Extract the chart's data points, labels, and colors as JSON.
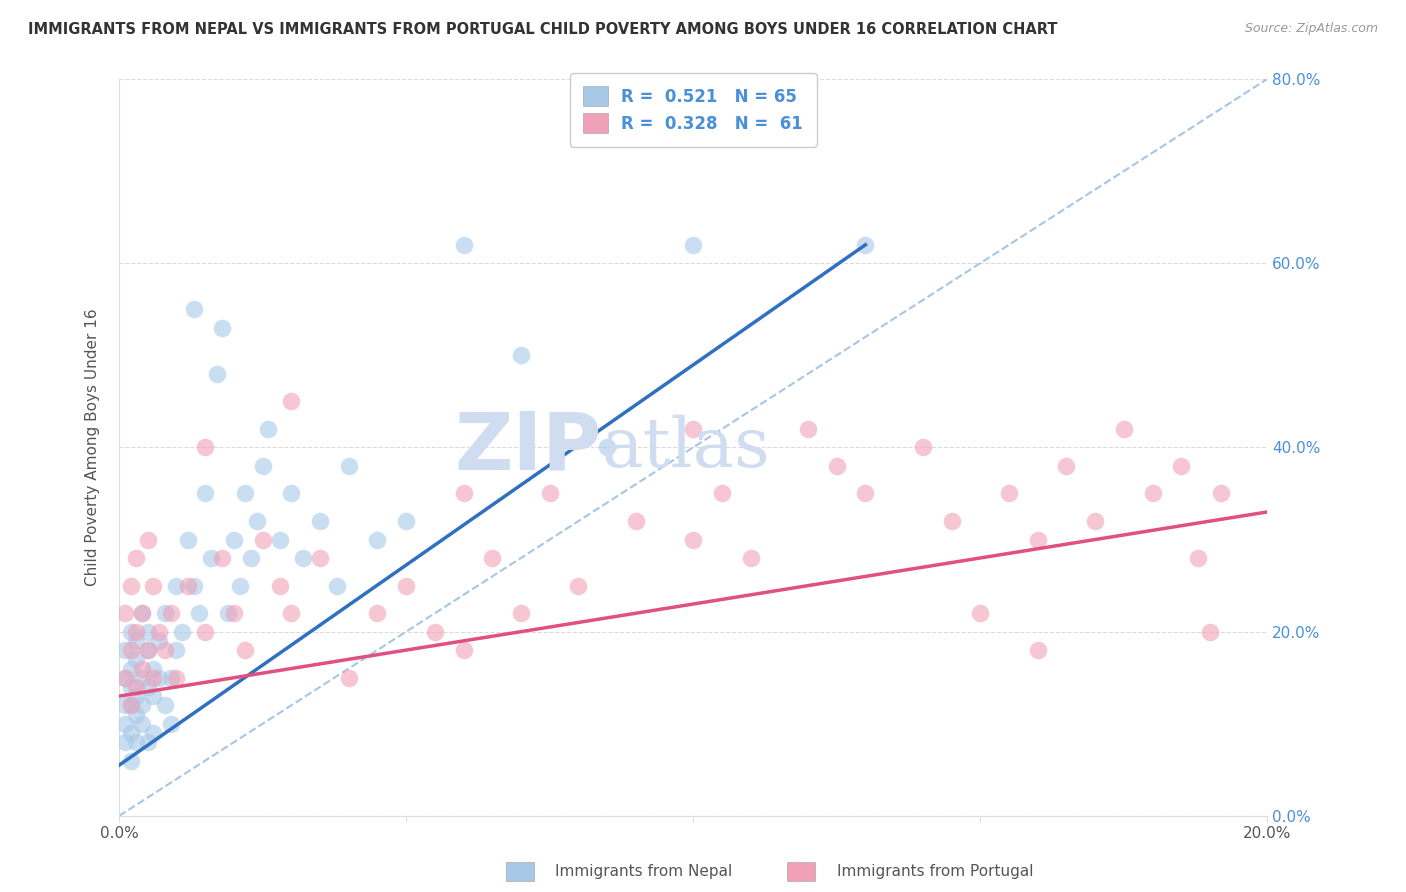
{
  "title": "IMMIGRANTS FROM NEPAL VS IMMIGRANTS FROM PORTUGAL CHILD POVERTY AMONG BOYS UNDER 16 CORRELATION CHART",
  "source": "Source: ZipAtlas.com",
  "ylabel": "Child Poverty Among Boys Under 16",
  "xlabel_nepal": "Immigrants from Nepal",
  "xlabel_portugal": "Immigrants from Portugal",
  "xlim": [
    0.0,
    0.2
  ],
  "ylim": [
    0.0,
    0.8
  ],
  "xticks": [
    0.0,
    0.05,
    0.1,
    0.15,
    0.2
  ],
  "yticks": [
    0.0,
    0.2,
    0.4,
    0.6,
    0.8
  ],
  "ytick_labels_right": [
    "0.0%",
    "20.0%",
    "40.0%",
    "60.0%",
    "80.0%"
  ],
  "xtick_labels": [
    "0.0%",
    "",
    "",
    "",
    "20.0%"
  ],
  "R_nepal": 0.521,
  "N_nepal": 65,
  "R_portugal": 0.328,
  "N_portugal": 61,
  "color_nepal": "#A8C8E8",
  "color_portugal": "#F0A0B8",
  "color_nepal_line": "#3070C0",
  "color_portugal_line": "#E05080",
  "color_ref_line": "#90B8E0",
  "watermark_color": "#D0DCF0",
  "nepal_x": [
    0.001,
    0.001,
    0.001,
    0.001,
    0.001,
    0.002,
    0.002,
    0.002,
    0.002,
    0.002,
    0.002,
    0.003,
    0.003,
    0.003,
    0.003,
    0.003,
    0.004,
    0.004,
    0.004,
    0.004,
    0.005,
    0.005,
    0.005,
    0.005,
    0.006,
    0.006,
    0.006,
    0.007,
    0.007,
    0.008,
    0.008,
    0.009,
    0.009,
    0.01,
    0.01,
    0.011,
    0.012,
    0.013,
    0.013,
    0.014,
    0.015,
    0.016,
    0.017,
    0.018,
    0.019,
    0.02,
    0.021,
    0.022,
    0.023,
    0.024,
    0.025,
    0.026,
    0.028,
    0.03,
    0.032,
    0.035,
    0.038,
    0.04,
    0.045,
    0.05,
    0.06,
    0.07,
    0.085,
    0.1,
    0.13
  ],
  "nepal_y": [
    0.12,
    0.15,
    0.1,
    0.18,
    0.08,
    0.14,
    0.16,
    0.09,
    0.2,
    0.12,
    0.06,
    0.11,
    0.17,
    0.13,
    0.19,
    0.08,
    0.15,
    0.12,
    0.22,
    0.1,
    0.14,
    0.18,
    0.08,
    0.2,
    0.13,
    0.16,
    0.09,
    0.15,
    0.19,
    0.12,
    0.22,
    0.15,
    0.1,
    0.18,
    0.25,
    0.2,
    0.3,
    0.55,
    0.25,
    0.22,
    0.35,
    0.28,
    0.48,
    0.53,
    0.22,
    0.3,
    0.25,
    0.35,
    0.28,
    0.32,
    0.38,
    0.42,
    0.3,
    0.35,
    0.28,
    0.32,
    0.25,
    0.38,
    0.3,
    0.32,
    0.62,
    0.5,
    0.4,
    0.62,
    0.62
  ],
  "portugal_x": [
    0.001,
    0.001,
    0.002,
    0.002,
    0.002,
    0.003,
    0.003,
    0.003,
    0.004,
    0.004,
    0.005,
    0.005,
    0.006,
    0.006,
    0.007,
    0.008,
    0.009,
    0.01,
    0.012,
    0.015,
    0.018,
    0.02,
    0.022,
    0.025,
    0.028,
    0.03,
    0.035,
    0.04,
    0.045,
    0.05,
    0.055,
    0.06,
    0.065,
    0.07,
    0.075,
    0.08,
    0.09,
    0.1,
    0.105,
    0.11,
    0.12,
    0.125,
    0.13,
    0.14,
    0.145,
    0.15,
    0.155,
    0.16,
    0.165,
    0.17,
    0.175,
    0.18,
    0.185,
    0.188,
    0.19,
    0.192,
    0.015,
    0.03,
    0.06,
    0.1,
    0.16
  ],
  "portugal_y": [
    0.15,
    0.22,
    0.12,
    0.18,
    0.25,
    0.14,
    0.2,
    0.28,
    0.16,
    0.22,
    0.18,
    0.3,
    0.15,
    0.25,
    0.2,
    0.18,
    0.22,
    0.15,
    0.25,
    0.2,
    0.28,
    0.22,
    0.18,
    0.3,
    0.25,
    0.22,
    0.28,
    0.15,
    0.22,
    0.25,
    0.2,
    0.18,
    0.28,
    0.22,
    0.35,
    0.25,
    0.32,
    0.3,
    0.35,
    0.28,
    0.42,
    0.38,
    0.35,
    0.4,
    0.32,
    0.22,
    0.35,
    0.3,
    0.38,
    0.32,
    0.42,
    0.35,
    0.38,
    0.28,
    0.2,
    0.35,
    0.4,
    0.45,
    0.35,
    0.42,
    0.18
  ],
  "nepal_line_x": [
    0.0,
    0.13
  ],
  "nepal_line_y": [
    0.055,
    0.62
  ],
  "portugal_line_x": [
    0.0,
    0.2
  ],
  "portugal_line_y": [
    0.13,
    0.33
  ],
  "ref_line_x": [
    0.0,
    0.2
  ],
  "ref_line_y": [
    0.0,
    0.8
  ]
}
